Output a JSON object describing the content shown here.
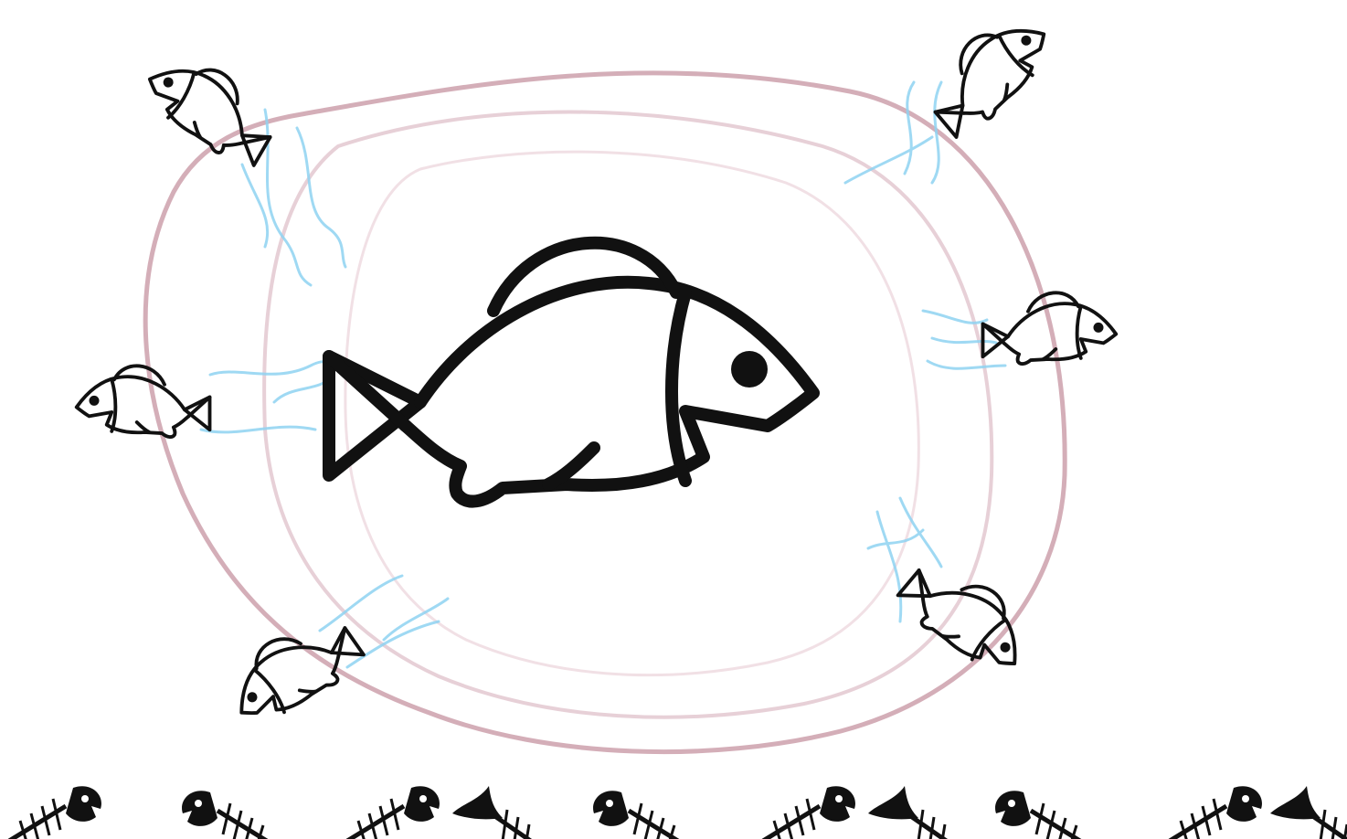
{
  "scene": {
    "background": "#ffffff",
    "ripple_color": "#c99aa6",
    "water_color": "#8fd3f2",
    "outline_color": "#111111",
    "icons": {
      "central_fish": "fish-icon",
      "small_fish": "fish-icon",
      "bones": "fish-skeleton-icon"
    },
    "small_fish_count": 6,
    "fish_skeleton_count": 10
  }
}
